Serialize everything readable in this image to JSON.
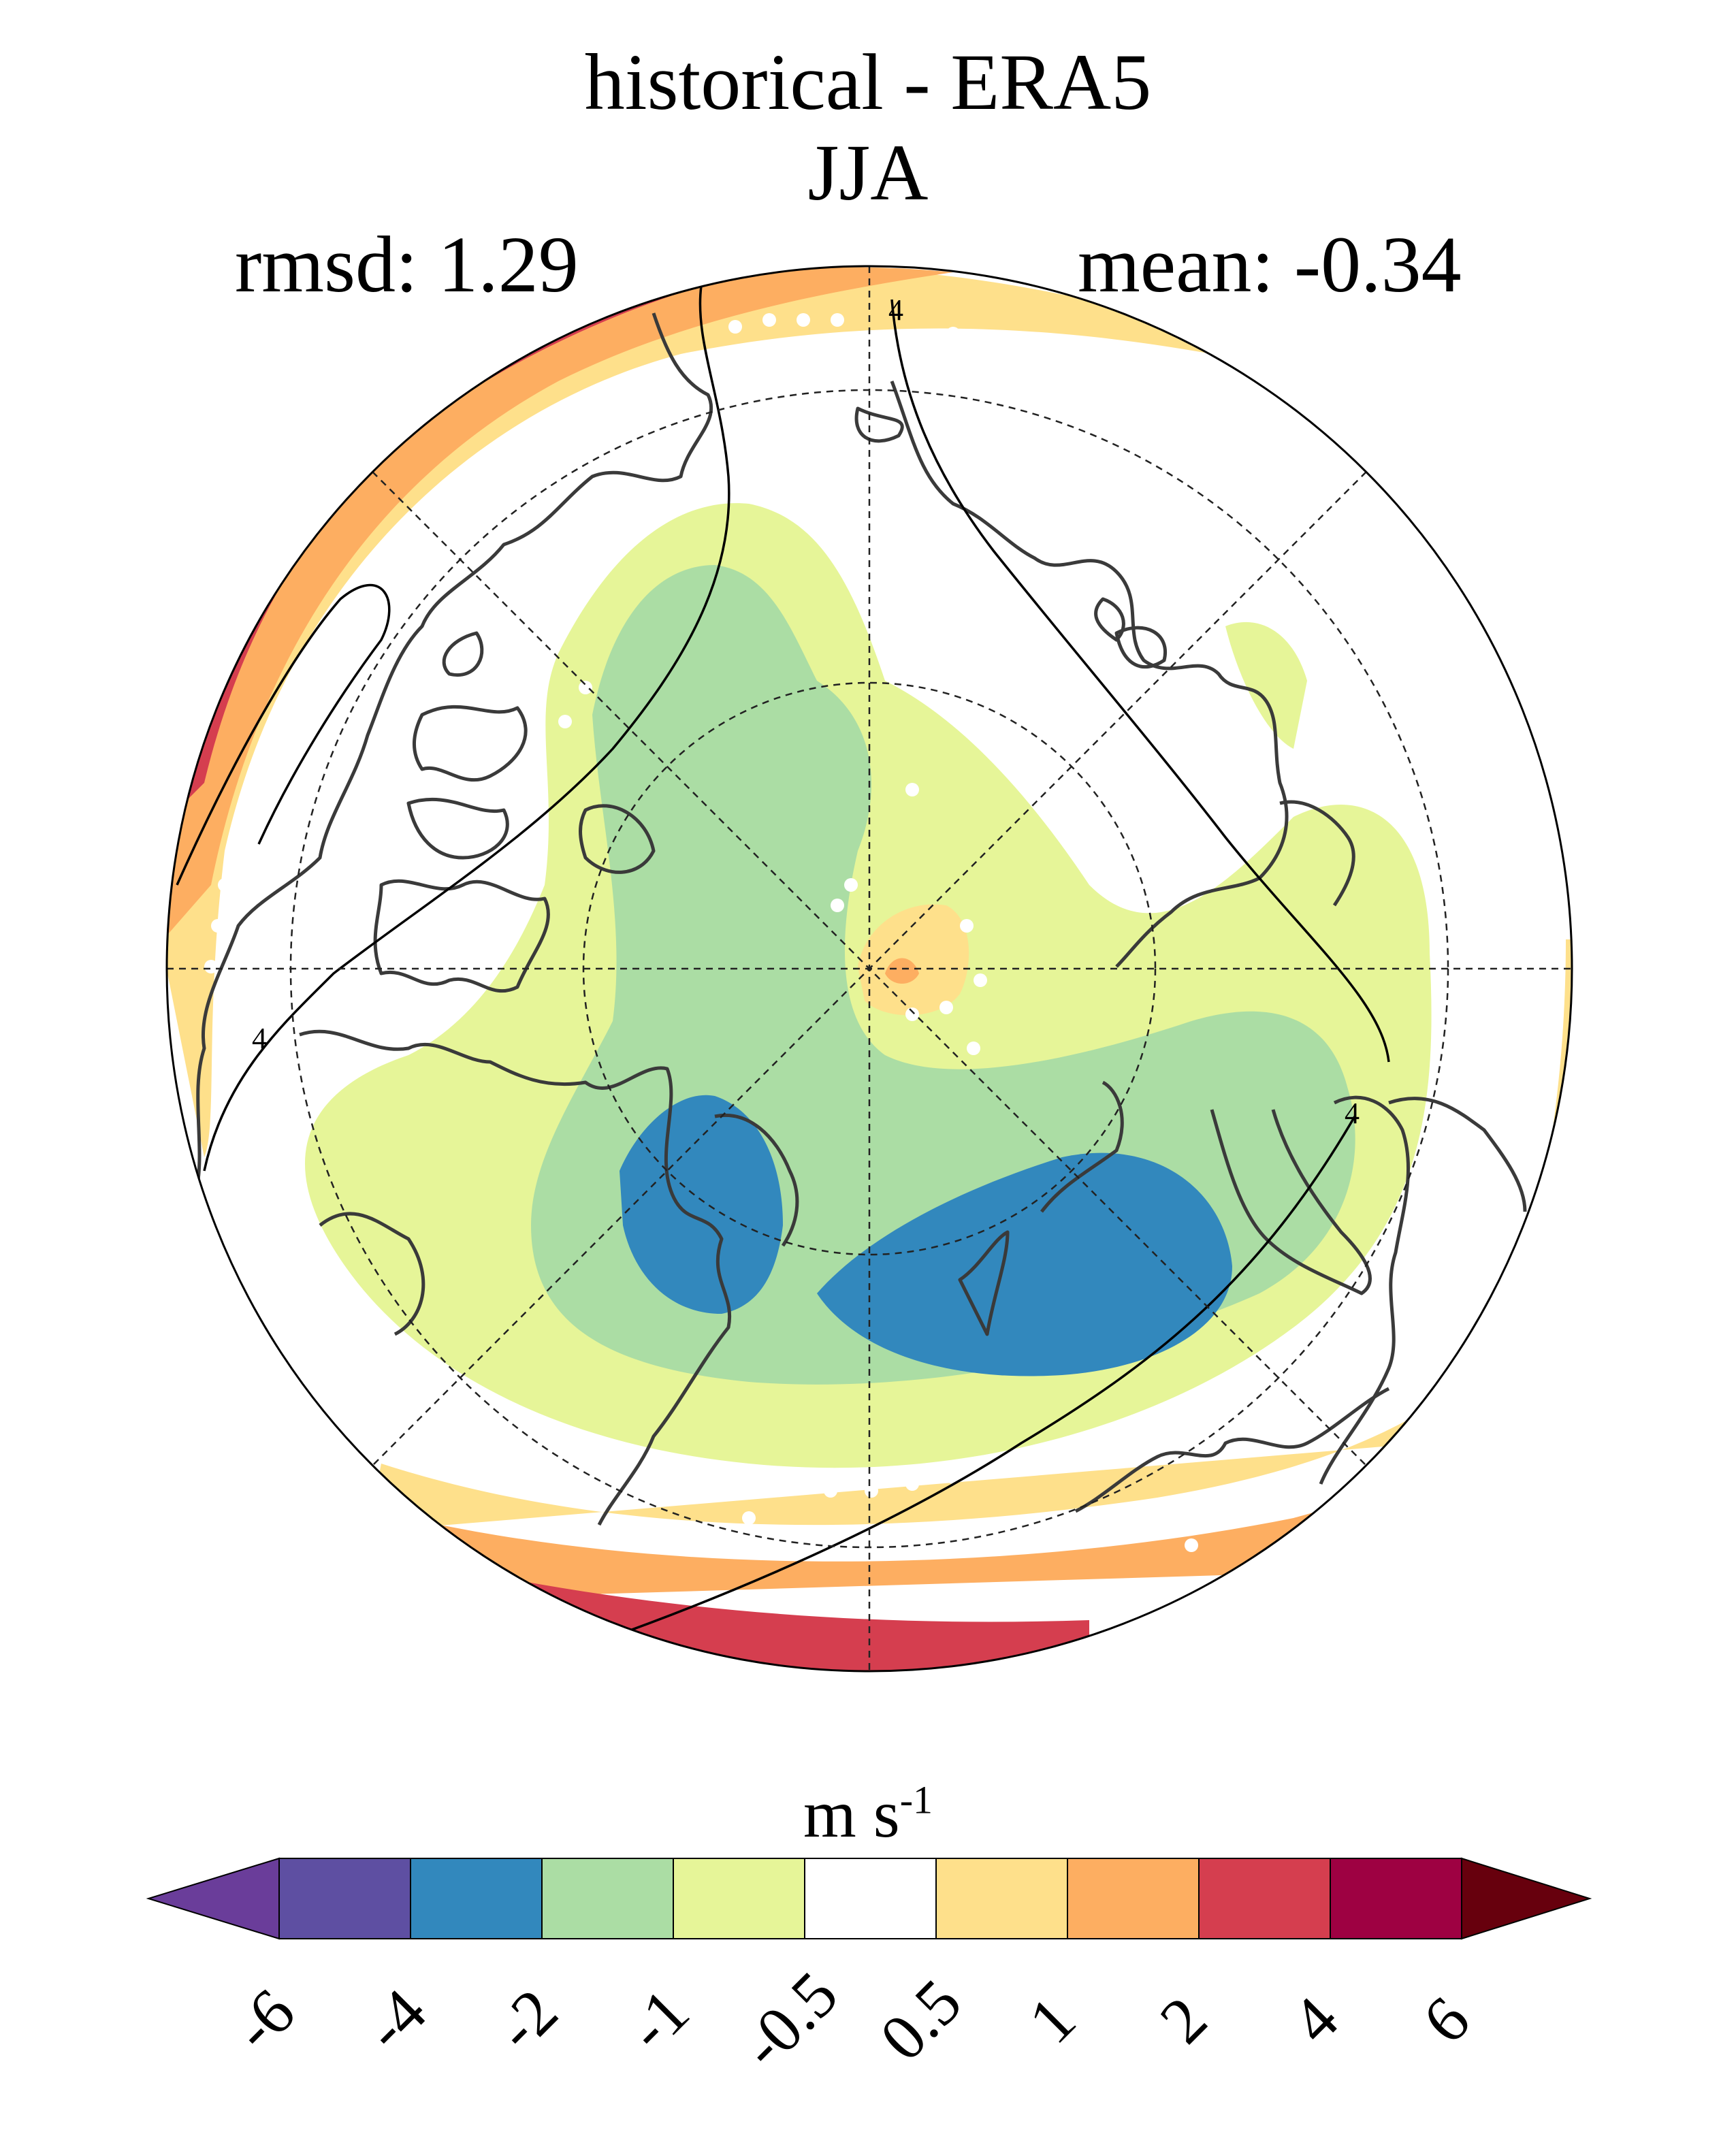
{
  "figure": {
    "title_line1": "historical - ERA5",
    "title_line2": "JJA",
    "rmsd_label": "rmsd: 1.29",
    "mean_label": "mean: -0.34",
    "units_main": "m s",
    "units_exp": "-1",
    "contour_labels": [
      "4",
      "4",
      "4"
    ]
  },
  "colorbar": {
    "levels": [
      "-6",
      "-4",
      "-2",
      "-1",
      "-0.5",
      "0.5",
      "1",
      "2",
      "4",
      "6"
    ],
    "colors": [
      "#5e4fa2",
      "#3288bd",
      "#abdda4",
      "#e6f598",
      "#ffffff",
      "#fee08b",
      "#fdae61",
      "#d53e4f",
      "#9e0142"
    ],
    "under_color": "#6a3d9a",
    "over_color": "#67000d"
  },
  "chart_data": {
    "type": "heatmap",
    "projection": "north polar stereographic",
    "season": "JJA",
    "variable_units": "m s-1",
    "rmsd": 1.29,
    "mean": -0.34,
    "levels": [
      -6,
      -4,
      -2,
      -1,
      -0.5,
      0.5,
      1,
      2,
      4,
      6
    ]
  }
}
